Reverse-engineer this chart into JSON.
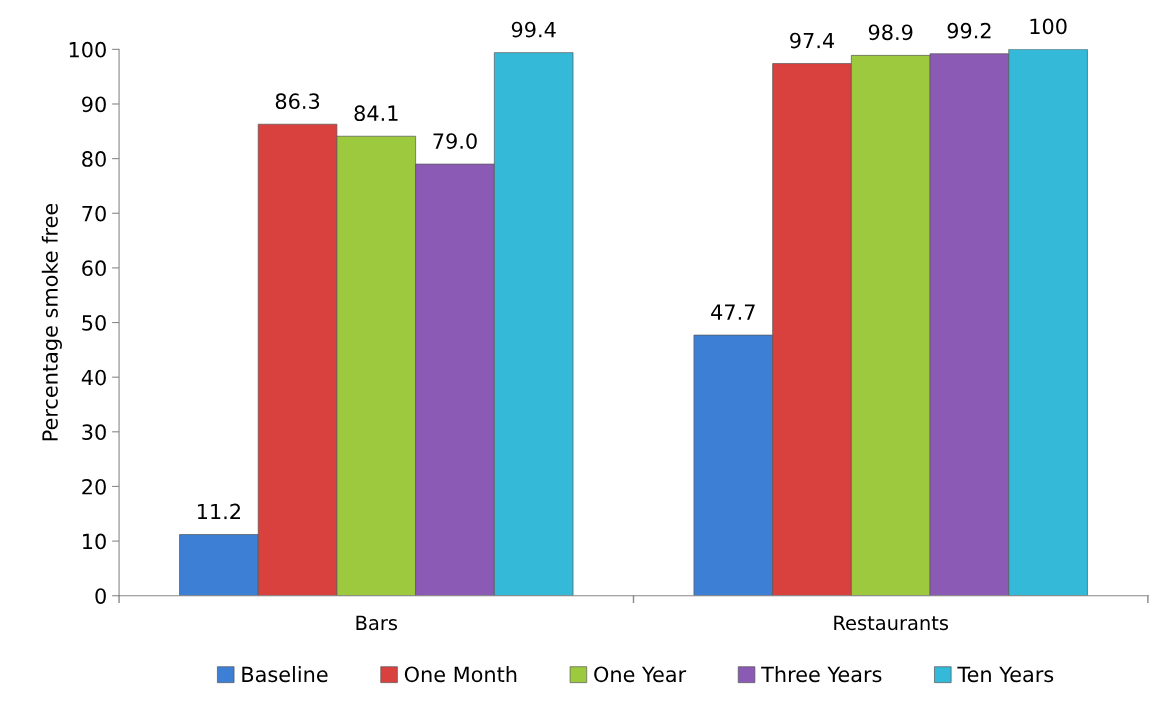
{
  "chart_data": {
    "type": "bar",
    "ylabel": "Percentage smoke free",
    "categories": [
      "Bars",
      "Restaurants"
    ],
    "series": [
      {
        "name": "Baseline",
        "color": "#3c7fd4",
        "values": [
          11.2,
          47.7
        ],
        "value_labels": [
          "11.2",
          "47.7"
        ]
      },
      {
        "name": "One Month",
        "color": "#d9413f",
        "values": [
          86.3,
          97.4
        ],
        "value_labels": [
          "86.3",
          "97.4"
        ]
      },
      {
        "name": "One Year",
        "color": "#9dc93f",
        "values": [
          84.1,
          98.9
        ],
        "value_labels": [
          "84.1",
          "98.9"
        ]
      },
      {
        "name": "Three Years",
        "color": "#8a5ab5",
        "values": [
          79.0,
          99.2
        ],
        "value_labels": [
          "79.0",
          "99.2"
        ]
      },
      {
        "name": "Ten Years",
        "color": "#35b9d9",
        "values": [
          99.4,
          100
        ],
        "value_labels": [
          "99.4",
          "100"
        ]
      }
    ],
    "ylim": [
      0,
      100
    ],
    "yticks": [
      0,
      10,
      20,
      30,
      40,
      50,
      60,
      70,
      80,
      90,
      100
    ],
    "grid": false,
    "legend": "bottom"
  }
}
